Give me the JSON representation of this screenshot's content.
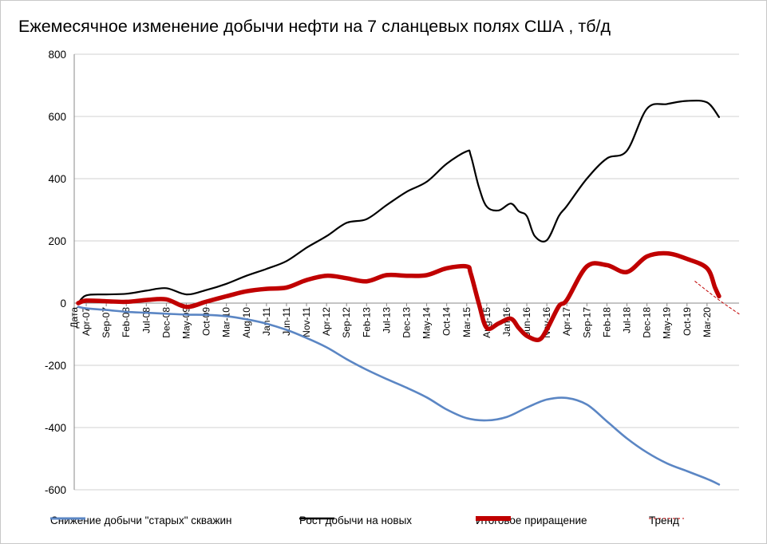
{
  "chart_data": {
    "type": "line",
    "title": "Ежемесячное изменение добычи нефти на 7 сланцевых полях  США , тб/д",
    "xlabel": "",
    "ylabel": "",
    "ylim": [
      -600,
      800
    ],
    "yticks": [
      800,
      600,
      400,
      200,
      0,
      -200,
      -400,
      -600
    ],
    "yticklabels": [
      "800",
      "600",
      "400",
      "200",
      "0",
      "-200",
      "-400",
      "-600"
    ],
    "grid": "horizontal",
    "legend_position": "bottom",
    "xticklabels": [
      "Дата",
      "Apr-07",
      "Sep-07",
      "Feb-08",
      "Jul-08",
      "Dec-08",
      "May-09",
      "Oct-09",
      "Mar-10",
      "Aug-10",
      "Jan-11",
      "Jun-11",
      "Nov-11",
      "Apr-12",
      "Sep-12",
      "Feb-13",
      "Jul-13",
      "Dec-13",
      "May-14",
      "Oct-14",
      "Mar-15",
      "Aug-15",
      "Jan-16",
      "Jun-16",
      "Nov-16",
      "Apr-17",
      "Sep-17",
      "Feb-18",
      "Jul-18",
      "Dec-18",
      "May-19",
      "Oct-19",
      "Mar-20"
    ],
    "x": [
      0,
      3,
      8,
      13,
      18,
      23,
      28,
      33,
      38,
      43,
      48,
      53,
      58,
      63,
      68,
      73,
      78,
      83,
      88,
      93,
      98,
      103,
      108,
      113,
      118,
      123,
      128,
      133,
      138,
      143,
      148,
      153,
      158
    ],
    "series": [
      {
        "name": "Снижение добычи \"старых\" скважин",
        "color": "#5b86c4",
        "points": [
          [
            1,
            -12
          ],
          [
            3,
            -17
          ],
          [
            8,
            -22
          ],
          [
            13,
            -28
          ],
          [
            18,
            -31
          ],
          [
            23,
            -34
          ],
          [
            28,
            -37
          ],
          [
            33,
            -38
          ],
          [
            38,
            -42
          ],
          [
            43,
            -52
          ],
          [
            48,
            -66
          ],
          [
            53,
            -86
          ],
          [
            58,
            -112
          ],
          [
            63,
            -142
          ],
          [
            68,
            -180
          ],
          [
            73,
            -214
          ],
          [
            78,
            -244
          ],
          [
            83,
            -272
          ],
          [
            88,
            -303
          ],
          [
            93,
            -342
          ],
          [
            98,
            -370
          ],
          [
            103,
            -377
          ],
          [
            108,
            -366
          ],
          [
            113,
            -336
          ],
          [
            118,
            -310
          ],
          [
            123,
            -305
          ],
          [
            128,
            -326
          ],
          [
            133,
            -380
          ],
          [
            138,
            -435
          ],
          [
            143,
            -480
          ],
          [
            148,
            -515
          ],
          [
            153,
            -540
          ],
          [
            158,
            -565
          ],
          [
            161,
            -583
          ]
        ]
      },
      {
        "name": "Рост добычи на новых",
        "color": "#000000",
        "points": [
          [
            1,
            0
          ],
          [
            3,
            25
          ],
          [
            8,
            28
          ],
          [
            13,
            30
          ],
          [
            18,
            40
          ],
          [
            23,
            48
          ],
          [
            28,
            28
          ],
          [
            33,
            42
          ],
          [
            38,
            62
          ],
          [
            43,
            88
          ],
          [
            48,
            110
          ],
          [
            53,
            135
          ],
          [
            58,
            178
          ],
          [
            63,
            215
          ],
          [
            68,
            258
          ],
          [
            73,
            270
          ],
          [
            78,
            315
          ],
          [
            83,
            358
          ],
          [
            88,
            390
          ],
          [
            93,
            448
          ],
          [
            98,
            488
          ],
          [
            99,
            475
          ],
          [
            101,
            375
          ],
          [
            103,
            310
          ],
          [
            106,
            298
          ],
          [
            109,
            320
          ],
          [
            111,
            295
          ],
          [
            113,
            280
          ],
          [
            115,
            215
          ],
          [
            118,
            202
          ],
          [
            121,
            280
          ],
          [
            123,
            312
          ],
          [
            128,
            400
          ],
          [
            133,
            465
          ],
          [
            138,
            490
          ],
          [
            143,
            625
          ],
          [
            148,
            640
          ],
          [
            153,
            650
          ],
          [
            158,
            645
          ],
          [
            161,
            598
          ]
        ]
      },
      {
        "name": "Итоговое приращение",
        "color": "#c00000",
        "points": [
          [
            1,
            0
          ],
          [
            3,
            8
          ],
          [
            8,
            6
          ],
          [
            13,
            4
          ],
          [
            18,
            10
          ],
          [
            23,
            12
          ],
          [
            28,
            -12
          ],
          [
            33,
            5
          ],
          [
            38,
            22
          ],
          [
            43,
            38
          ],
          [
            48,
            46
          ],
          [
            53,
            50
          ],
          [
            58,
            74
          ],
          [
            63,
            88
          ],
          [
            68,
            80
          ],
          [
            73,
            70
          ],
          [
            78,
            90
          ],
          [
            83,
            88
          ],
          [
            88,
            90
          ],
          [
            93,
            112
          ],
          [
            98,
            118
          ],
          [
            99,
            95
          ],
          [
            101,
            0
          ],
          [
            103,
            -80
          ],
          [
            106,
            -65
          ],
          [
            109,
            -50
          ],
          [
            111,
            -80
          ],
          [
            113,
            -105
          ],
          [
            116,
            -118
          ],
          [
            118,
            -85
          ],
          [
            121,
            -10
          ],
          [
            123,
            10
          ],
          [
            128,
            118
          ],
          [
            133,
            122
          ],
          [
            138,
            100
          ],
          [
            143,
            150
          ],
          [
            148,
            160
          ],
          [
            153,
            142
          ],
          [
            158,
            112
          ],
          [
            160,
            50
          ],
          [
            161,
            22
          ]
        ]
      },
      {
        "name": "Тренд",
        "color": "#c00000",
        "dashed": true,
        "points": [
          [
            155,
            70
          ],
          [
            161,
            10
          ],
          [
            166,
            -35
          ]
        ]
      }
    ]
  }
}
